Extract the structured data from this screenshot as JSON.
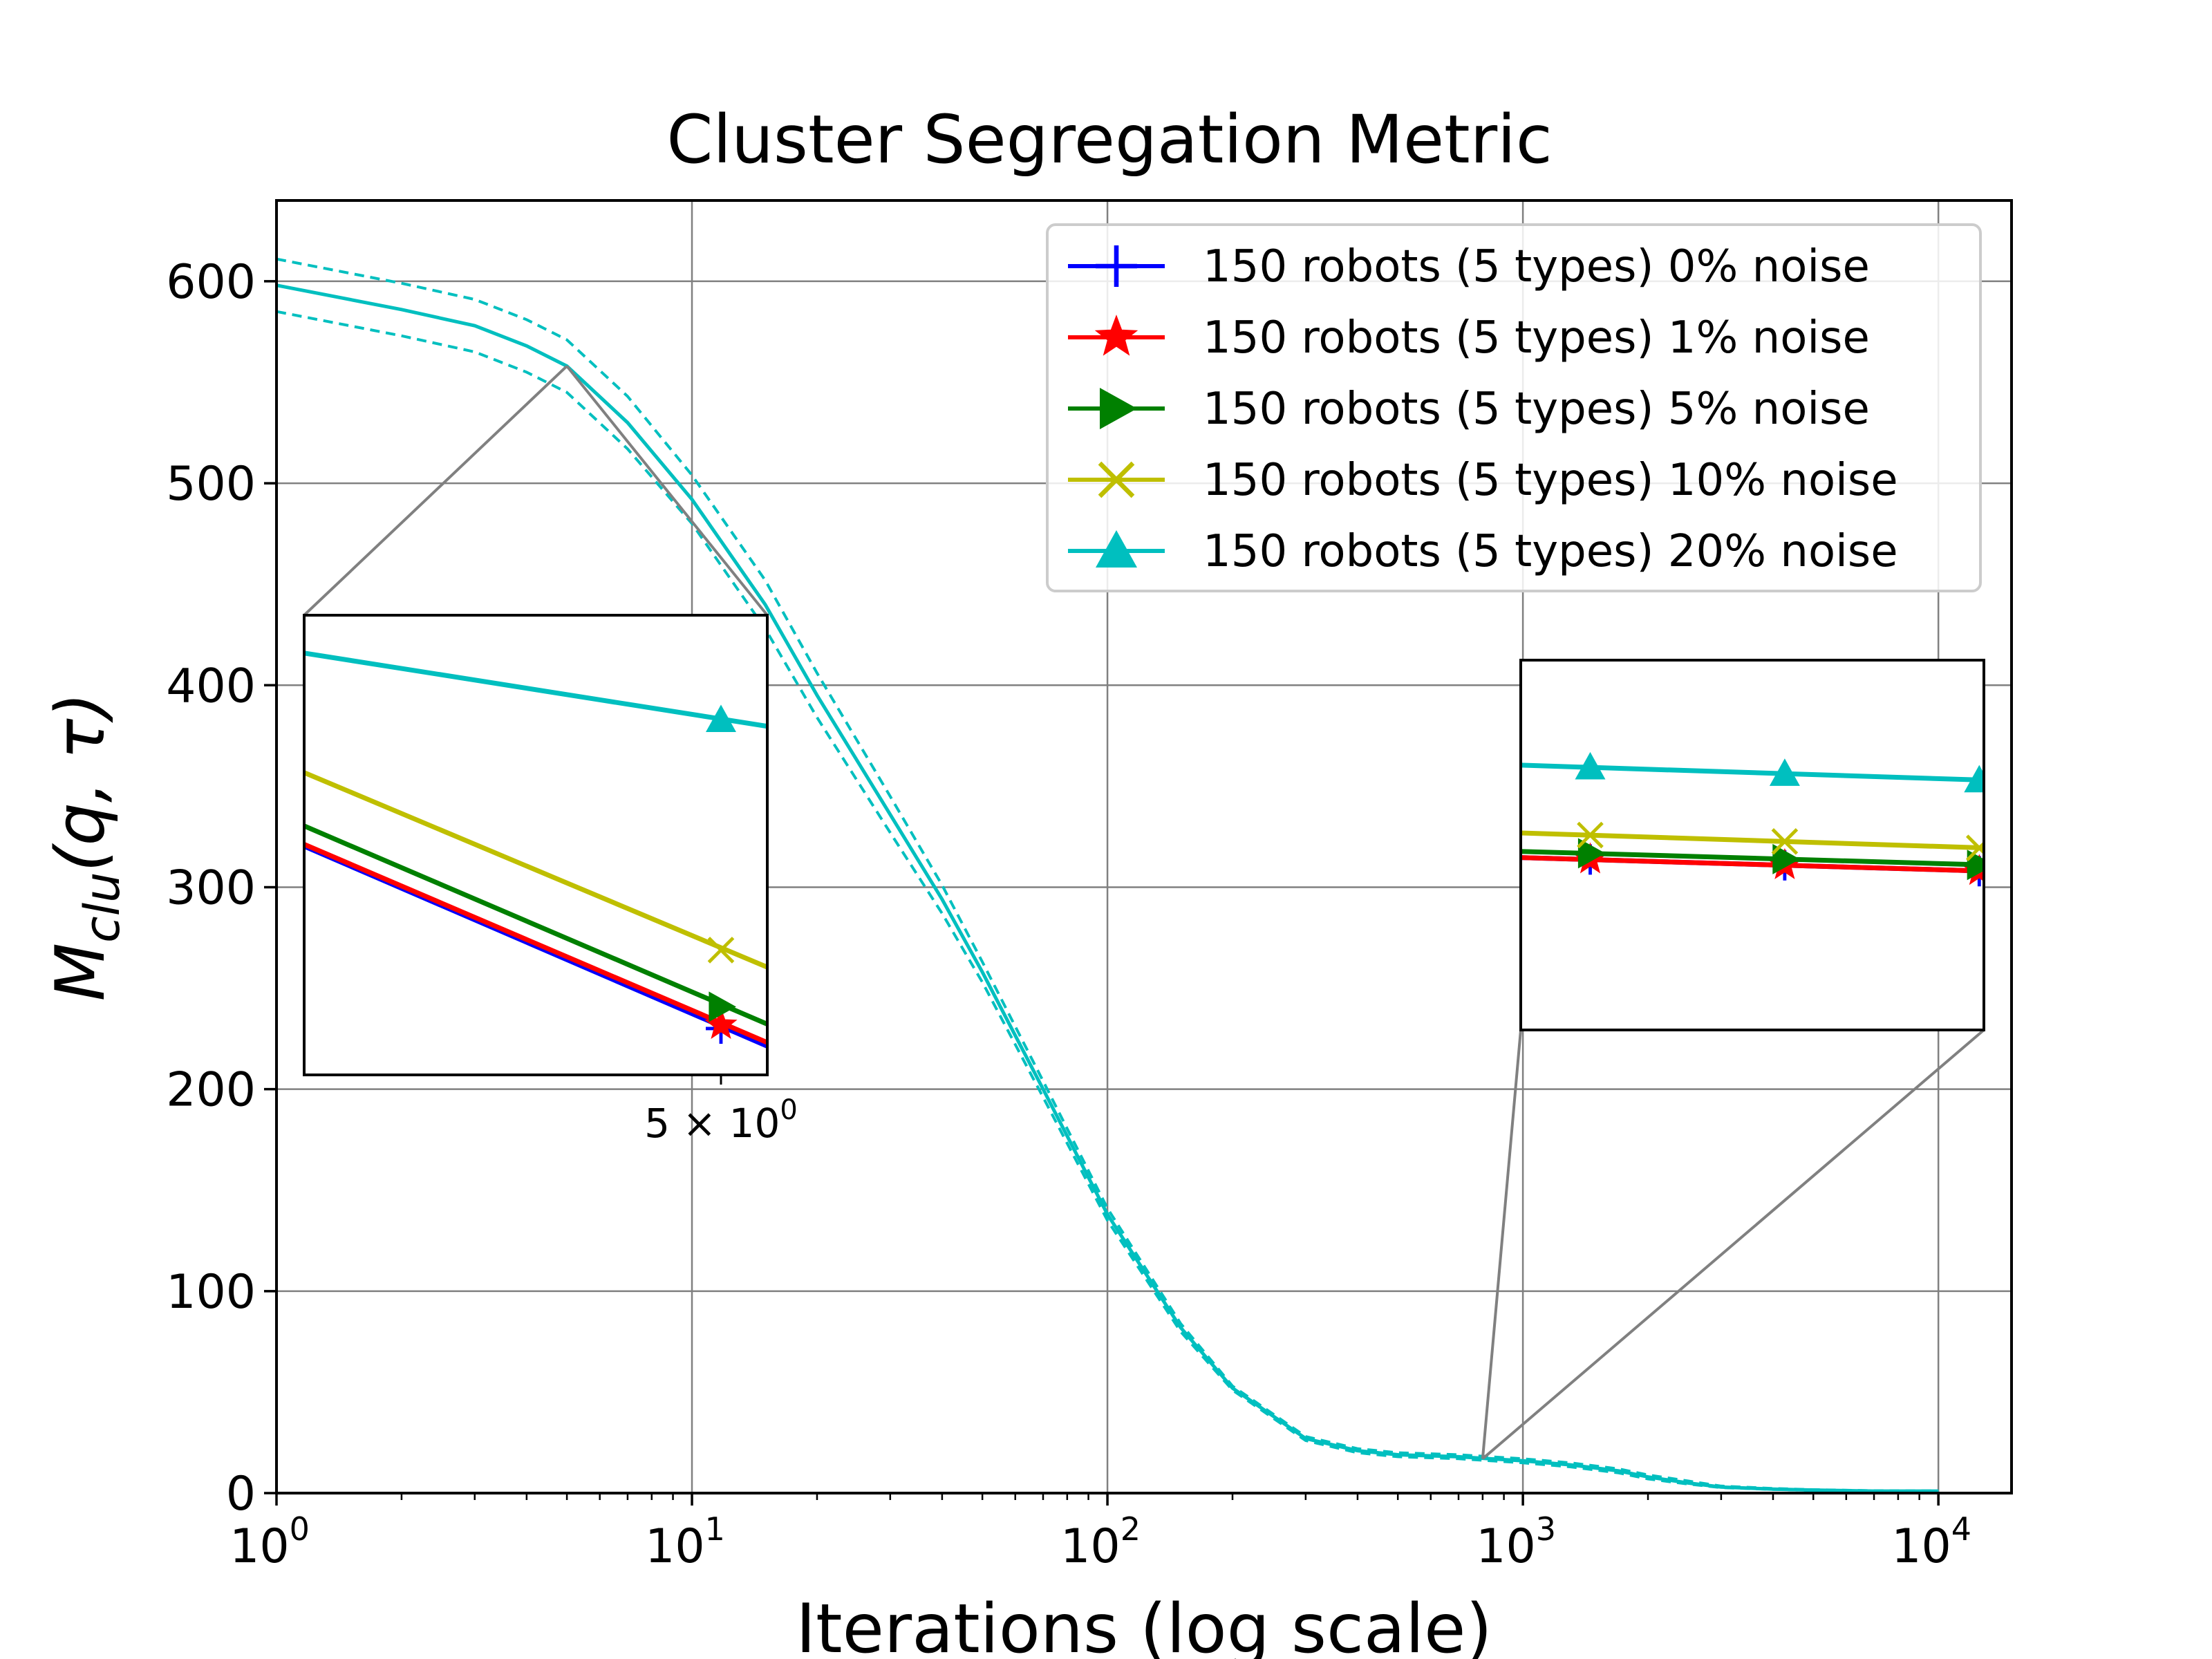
{
  "chart_data": {
    "type": "line",
    "title": "Cluster Segregation Metric",
    "xlabel": "Iterations (log scale)",
    "ylabel_main": "M",
    "ylabel_sub": "clu",
    "ylabel_args": "(q, τ)",
    "xscale": "log",
    "xlim": [
      1,
      15000
    ],
    "ylim": [
      0,
      640
    ],
    "grid": true,
    "legend_position": "top-right",
    "x_ticks": [
      {
        "value": 1,
        "base": "10",
        "exp": "0"
      },
      {
        "value": 10,
        "base": "10",
        "exp": "1"
      },
      {
        "value": 100,
        "base": "10",
        "exp": "2"
      },
      {
        "value": 1000,
        "base": "10",
        "exp": "3"
      },
      {
        "value": 10000,
        "base": "10",
        "exp": "4"
      }
    ],
    "y_ticks": [
      "0",
      "100",
      "200",
      "300",
      "400",
      "500",
      "600"
    ],
    "series": [
      {
        "name": "150 robots (5 types) 0% noise",
        "color": "#0000ff",
        "marker": "plus"
      },
      {
        "name": "150 robots (5 types) 1% noise",
        "color": "#ff0000",
        "marker": "star"
      },
      {
        "name": "150 robots (5 types) 5% noise",
        "color": "#008000",
        "marker": "triangle-right"
      },
      {
        "name": "150 robots (5 types) 10% noise",
        "color": "#bfbf00",
        "marker": "x"
      },
      {
        "name": "150 robots (5 types) 20% noise",
        "color": "#00bfbf",
        "marker": "triangle-up"
      }
    ],
    "curve": {
      "x": [
        1,
        2,
        3,
        4,
        5,
        7,
        10,
        15,
        20,
        30,
        40,
        50,
        70,
        100,
        150,
        200,
        300,
        400,
        500,
        700,
        1000,
        1300,
        1700,
        2000,
        2500,
        3000,
        4000,
        5000,
        7000,
        10000
      ],
      "y": [
        598,
        586,
        578,
        568,
        558,
        530,
        492,
        440,
        395,
        336,
        294,
        258,
        200,
        138,
        82,
        52,
        27,
        21,
        19,
        18,
        16,
        14,
        11,
        8,
        5,
        3,
        2,
        1.5,
        1,
        1
      ],
      "upper_band": [
        611,
        599,
        591,
        581,
        571,
        543,
        504,
        452,
        406,
        345,
        301,
        263,
        204,
        141,
        84,
        53,
        28,
        22,
        20,
        19,
        17,
        15,
        12,
        9,
        6,
        3.5,
        2.3,
        1.7,
        1.2,
        1.1
      ],
      "lower_band": [
        585,
        573,
        565,
        555,
        545,
        517,
        480,
        428,
        384,
        327,
        287,
        253,
        196,
        135,
        80,
        51,
        26,
        20,
        18,
        17,
        15,
        13,
        10,
        7,
        4.5,
        2.7,
        1.8,
        1.3,
        0.9,
        0.9
      ]
    },
    "inset_left": {
      "tick_label": "5 × 10",
      "tick_exp": "0",
      "lines": [
        {
          "series": 0,
          "y_start": 336,
          "y_end": 224
        },
        {
          "series": 1,
          "y_start": 337,
          "y_end": 226
        },
        {
          "series": 2,
          "y_start": 347,
          "y_end": 236
        },
        {
          "series": 3,
          "y_start": 376,
          "y_end": 267
        },
        {
          "series": 4,
          "y_start": 440,
          "y_end": 399
        }
      ]
    },
    "inset_right": {
      "lines": [
        {
          "series": 0,
          "y_start": 292,
          "y_end": 283
        },
        {
          "series": 1,
          "y_start": 292,
          "y_end": 283
        },
        {
          "series": 2,
          "y_start": 296,
          "y_end": 287
        },
        {
          "series": 3,
          "y_start": 308,
          "y_end": 298
        },
        {
          "series": 4,
          "y_start": 352,
          "y_end": 342
        }
      ]
    }
  }
}
